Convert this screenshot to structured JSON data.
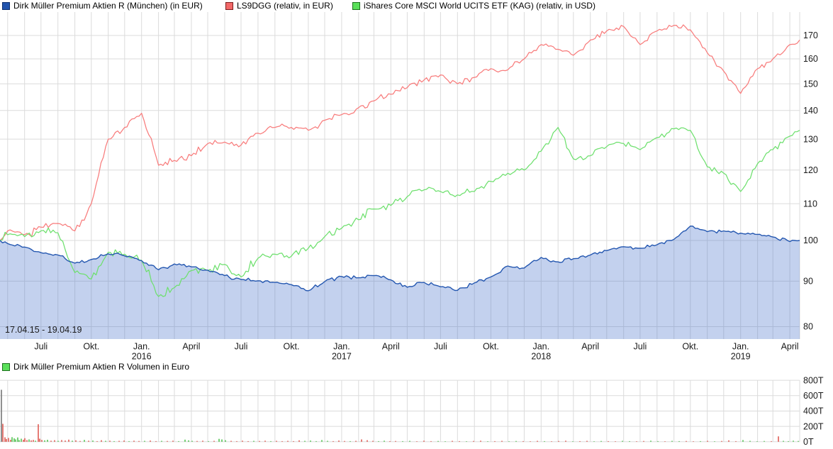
{
  "header": {
    "legend": [
      {
        "label": "Dirk Müller Premium Aktien R (München) (in EUR)",
        "color": "#2254ae",
        "border": "#0e2f6e"
      },
      {
        "label": "LS9DGG (relativ, in EUR)",
        "color": "#f26868",
        "border": "#7c1d1d"
      },
      {
        "label": "iShares Core MSCI World UCITS ETF (KAG) (relativ, in USD)",
        "color": "#5ae05a",
        "border": "#1d701d"
      }
    ]
  },
  "volume_header": {
    "legend": [
      {
        "label": "Dirk Müller Premium Aktien R Volumen in Euro",
        "color": "#5ae05a",
        "border": "#1d701d"
      }
    ]
  },
  "chart_data": [
    {
      "type": "line",
      "scale": "log",
      "title": "",
      "date_range_label": "17.04.15 - 19.04.19",
      "ylim": [
        77.5,
        180.5
      ],
      "yticks": [
        80,
        90,
        100,
        110,
        120,
        130,
        140,
        150,
        160,
        170
      ],
      "legend_position": "top",
      "grid": true,
      "total_days": 1463,
      "x_dates": [
        "17.04.15",
        "01.05.15",
        "01.06.15",
        "01.07.15",
        "01.08.15",
        "01.09.15",
        "01.10.15",
        "01.11.15",
        "01.12.15",
        "01.01.16",
        "01.02.16",
        "01.03.16",
        "01.04.16",
        "01.05.16",
        "01.06.16",
        "01.07.16",
        "01.08.16",
        "01.09.16",
        "01.10.16",
        "01.11.16",
        "01.12.16",
        "01.01.17",
        "01.02.17",
        "01.03.17",
        "01.04.17",
        "01.05.17",
        "01.06.17",
        "01.07.17",
        "01.08.17",
        "01.09.17",
        "01.10.17",
        "01.11.17",
        "01.12.17",
        "01.01.18",
        "01.02.18",
        "01.03.18",
        "01.04.18",
        "01.05.18",
        "01.06.18",
        "01.07.18",
        "01.08.18",
        "01.09.18",
        "01.10.18",
        "01.11.18",
        "01.12.18",
        "01.01.19",
        "01.02.19",
        "01.03.19",
        "01.04.19",
        "19.04.19"
      ],
      "x_days": [
        0,
        14,
        45,
        75,
        106,
        137,
        167,
        198,
        228,
        259,
        290,
        319,
        350,
        380,
        411,
        441,
        472,
        503,
        533,
        564,
        594,
        625,
        656,
        684,
        715,
        745,
        776,
        806,
        837,
        868,
        898,
        929,
        959,
        990,
        1021,
        1049,
        1080,
        1110,
        1141,
        1171,
        1202,
        1233,
        1263,
        1294,
        1324,
        1355,
        1386,
        1414,
        1445,
        1463
      ],
      "xtick_labels": [
        {
          "day": 75,
          "label": "Juli"
        },
        {
          "day": 167,
          "label": "Okt."
        },
        {
          "day": 259,
          "label": "Jan.",
          "year": "2016"
        },
        {
          "day": 350,
          "label": "April"
        },
        {
          "day": 441,
          "label": "Juli"
        },
        {
          "day": 533,
          "label": "Okt."
        },
        {
          "day": 625,
          "label": "Jan.",
          "year": "2017"
        },
        {
          "day": 715,
          "label": "April"
        },
        {
          "day": 806,
          "label": "Juli"
        },
        {
          "day": 898,
          "label": "Okt."
        },
        {
          "day": 990,
          "label": "Jan.",
          "year": "2018"
        },
        {
          "day": 1080,
          "label": "April"
        },
        {
          "day": 1171,
          "label": "Juli"
        },
        {
          "day": 1263,
          "label": "Okt."
        },
        {
          "day": 1355,
          "label": "Jan.",
          "year": "2019"
        },
        {
          "day": 1445,
          "label": "April"
        }
      ],
      "series": [
        {
          "name": "Dirk Müller Premium Aktien R (München) (in EUR)",
          "color": "#2457b0",
          "fill": "rgba(80,120,205,0.34)",
          "values": [
            100,
            99.2,
            98.3,
            96.9,
            96.3,
            94.3,
            95.2,
            96.6,
            96.1,
            94.9,
            92.7,
            94.1,
            93.4,
            92.6,
            91.3,
            90.4,
            90.1,
            89.7,
            89.2,
            87.8,
            89.9,
            91.1,
            90.8,
            91.3,
            90.3,
            88.6,
            89.7,
            88.7,
            87.9,
            89.6,
            91.0,
            93.6,
            93.1,
            95.7,
            94.6,
            95.4,
            96.3,
            97.4,
            98.4,
            98.0,
            98.9,
            100.3,
            103.8,
            102.3,
            102.5,
            101.9,
            101.6,
            100.9,
            99.7,
            100.0
          ]
        },
        {
          "name": "LS9DGG (relativ, in EUR)",
          "color": "#f87c7c",
          "values": [
            100,
            102.5,
            101.5,
            103.5,
            104.5,
            102.5,
            110.0,
            130.0,
            134.0,
            139.0,
            121.5,
            123.0,
            124.5,
            128.5,
            129.0,
            128.0,
            132.0,
            134.0,
            134.0,
            133.0,
            136.5,
            138.5,
            141.0,
            143.5,
            146.0,
            148.5,
            151.5,
            153.5,
            150.0,
            152.5,
            156.0,
            155.5,
            160.0,
            166.0,
            164.0,
            161.5,
            168.0,
            172.0,
            174.0,
            166.0,
            172.0,
            174.5,
            172.5,
            162.5,
            155.0,
            146.3,
            156.0,
            160.0,
            166.0,
            168.0
          ]
        },
        {
          "name": "iShares Core MSCI World UCITS ETF (KAG) (relativ, in USD)",
          "color": "#6ee06e",
          "values": [
            100,
            101.5,
            101.0,
            102.5,
            102.0,
            92.0,
            90.5,
            97.0,
            96.5,
            95.0,
            86.5,
            88.5,
            92.5,
            92.5,
            94.0,
            91.0,
            95.5,
            96.5,
            96.0,
            98.0,
            101.0,
            103.2,
            105.5,
            108.5,
            109.5,
            112.0,
            114.0,
            113.5,
            112.5,
            113.5,
            116.5,
            119.0,
            120.0,
            126.0,
            134.0,
            123.5,
            124.5,
            127.5,
            128.5,
            126.5,
            130.5,
            133.5,
            133.0,
            121.0,
            119.0,
            113.5,
            122.0,
            126.5,
            131.0,
            133.0
          ]
        }
      ]
    },
    {
      "type": "bar",
      "title": "Dirk Müller Premium Aktien R Volumen in Euro",
      "ylim_T": [
        0,
        800
      ],
      "yticks": [
        "0T",
        "200T",
        "400T",
        "600T",
        "800T"
      ],
      "ytick_values": [
        0,
        200,
        400,
        600,
        800
      ],
      "bar_colors": {
        "r": "#e05c54",
        "g": "#53c453",
        "k": "#767676"
      },
      "bars": [
        [
          2,
          676,
          "k"
        ],
        [
          4,
          233,
          "r"
        ],
        [
          7,
          58,
          "r"
        ],
        [
          9,
          36,
          "r"
        ],
        [
          12,
          50,
          "r"
        ],
        [
          15,
          26,
          "r"
        ],
        [
          17,
          60,
          "g"
        ],
        [
          20,
          44,
          "g"
        ],
        [
          22,
          30,
          "g"
        ],
        [
          25,
          56,
          "g"
        ],
        [
          27,
          22,
          "g"
        ],
        [
          30,
          40,
          "g"
        ],
        [
          33,
          26,
          "r"
        ],
        [
          35,
          46,
          "r"
        ],
        [
          38,
          22,
          "r"
        ],
        [
          41,
          30,
          "g"
        ],
        [
          44,
          18,
          "r"
        ],
        [
          47,
          24,
          "r"
        ],
        [
          50,
          14,
          "g"
        ],
        [
          54,
          228,
          "r"
        ],
        [
          56,
          40,
          "r"
        ],
        [
          59,
          24,
          "r"
        ],
        [
          63,
          18,
          "g"
        ],
        [
          67,
          26,
          "g"
        ],
        [
          72,
          14,
          "r"
        ],
        [
          77,
          20,
          "r"
        ],
        [
          82,
          12,
          "g"
        ],
        [
          87,
          22,
          "r"
        ],
        [
          92,
          16,
          "r"
        ],
        [
          97,
          28,
          "r"
        ],
        [
          102,
          14,
          "g"
        ],
        [
          107,
          18,
          "r"
        ],
        [
          113,
          10,
          "r"
        ],
        [
          119,
          24,
          "g"
        ],
        [
          125,
          14,
          "r"
        ],
        [
          131,
          16,
          "g"
        ],
        [
          137,
          8,
          "r"
        ],
        [
          143,
          20,
          "r"
        ],
        [
          149,
          12,
          "g"
        ],
        [
          155,
          14,
          "r"
        ],
        [
          161,
          8,
          "g"
        ],
        [
          168,
          12,
          "r"
        ],
        [
          175,
          16,
          "r"
        ],
        [
          182,
          8,
          "g"
        ],
        [
          189,
          14,
          "r"
        ],
        [
          196,
          10,
          "r"
        ],
        [
          204,
          12,
          "g"
        ],
        [
          212,
          16,
          "r"
        ],
        [
          220,
          8,
          "r"
        ],
        [
          228,
          12,
          "g"
        ],
        [
          236,
          10,
          "r"
        ],
        [
          244,
          14,
          "r"
        ],
        [
          252,
          8,
          "g"
        ],
        [
          261,
          28,
          "g"
        ],
        [
          266,
          18,
          "g"
        ],
        [
          271,
          12,
          "g"
        ],
        [
          278,
          10,
          "r"
        ],
        [
          286,
          14,
          "r"
        ],
        [
          294,
          8,
          "g"
        ],
        [
          302,
          12,
          "r"
        ],
        [
          309,
          38,
          "g"
        ],
        [
          313,
          30,
          "g"
        ],
        [
          318,
          20,
          "g"
        ],
        [
          326,
          12,
          "r"
        ],
        [
          334,
          8,
          "r"
        ],
        [
          342,
          14,
          "r"
        ],
        [
          350,
          8,
          "r"
        ],
        [
          358,
          12,
          "g"
        ],
        [
          366,
          10,
          "r"
        ],
        [
          374,
          14,
          "r"
        ],
        [
          382,
          8,
          "g"
        ],
        [
          390,
          12,
          "r"
        ],
        [
          398,
          8,
          "r"
        ],
        [
          406,
          12,
          "r"
        ],
        [
          414,
          8,
          "r"
        ],
        [
          422,
          18,
          "r"
        ],
        [
          430,
          12,
          "g"
        ],
        [
          438,
          16,
          "g"
        ],
        [
          446,
          8,
          "g"
        ],
        [
          454,
          22,
          "g"
        ],
        [
          462,
          12,
          "g"
        ],
        [
          470,
          8,
          "r"
        ],
        [
          478,
          16,
          "r"
        ],
        [
          486,
          10,
          "r"
        ],
        [
          494,
          8,
          "g"
        ],
        [
          502,
          12,
          "r"
        ],
        [
          510,
          30,
          "r"
        ],
        [
          518,
          20,
          "r"
        ],
        [
          526,
          12,
          "r"
        ],
        [
          534,
          8,
          "g"
        ],
        [
          542,
          14,
          "g"
        ],
        [
          550,
          8,
          "r"
        ],
        [
          558,
          10,
          "r"
        ],
        [
          568,
          8,
          "g"
        ],
        [
          578,
          12,
          "g"
        ],
        [
          588,
          6,
          "r"
        ],
        [
          598,
          14,
          "r"
        ],
        [
          608,
          8,
          "r"
        ],
        [
          618,
          10,
          "g"
        ],
        [
          628,
          6,
          "g"
        ],
        [
          638,
          12,
          "r"
        ],
        [
          648,
          8,
          "r"
        ],
        [
          658,
          6,
          "g"
        ],
        [
          668,
          10,
          "r"
        ],
        [
          678,
          14,
          "r"
        ],
        [
          688,
          6,
          "g"
        ],
        [
          698,
          8,
          "r"
        ],
        [
          708,
          12,
          "r"
        ],
        [
          718,
          6,
          "g"
        ],
        [
          728,
          10,
          "g"
        ],
        [
          738,
          8,
          "r"
        ],
        [
          748,
          6,
          "r"
        ],
        [
          758,
          12,
          "r"
        ],
        [
          768,
          8,
          "g"
        ],
        [
          778,
          6,
          "r"
        ],
        [
          788,
          10,
          "r"
        ],
        [
          798,
          14,
          "r"
        ],
        [
          808,
          6,
          "g"
        ],
        [
          818,
          8,
          "r"
        ],
        [
          828,
          12,
          "r"
        ],
        [
          838,
          6,
          "g"
        ],
        [
          848,
          10,
          "g"
        ],
        [
          858,
          8,
          "r"
        ],
        [
          868,
          6,
          "r"
        ],
        [
          878,
          12,
          "g"
        ],
        [
          888,
          8,
          "g"
        ],
        [
          898,
          6,
          "r"
        ],
        [
          908,
          10,
          "r"
        ],
        [
          918,
          14,
          "g"
        ],
        [
          928,
          8,
          "g"
        ],
        [
          938,
          6,
          "r"
        ],
        [
          948,
          12,
          "g"
        ],
        [
          958,
          8,
          "g"
        ],
        [
          968,
          10,
          "r"
        ],
        [
          978,
          6,
          "r"
        ],
        [
          988,
          8,
          "g"
        ],
        [
          998,
          12,
          "r"
        ],
        [
          1008,
          6,
          "g"
        ],
        [
          1018,
          10,
          "r"
        ],
        [
          1028,
          18,
          "r"
        ],
        [
          1038,
          8,
          "r"
        ],
        [
          1048,
          22,
          "g"
        ],
        [
          1058,
          12,
          "g"
        ],
        [
          1068,
          6,
          "g"
        ],
        [
          1078,
          10,
          "g"
        ],
        [
          1088,
          8,
          "r"
        ],
        [
          1098,
          70,
          "r"
        ],
        [
          1105,
          12,
          "g"
        ],
        [
          1112,
          8,
          "g"
        ],
        [
          1119,
          14,
          "g"
        ],
        [
          1126,
          10,
          "g"
        ]
      ]
    }
  ]
}
